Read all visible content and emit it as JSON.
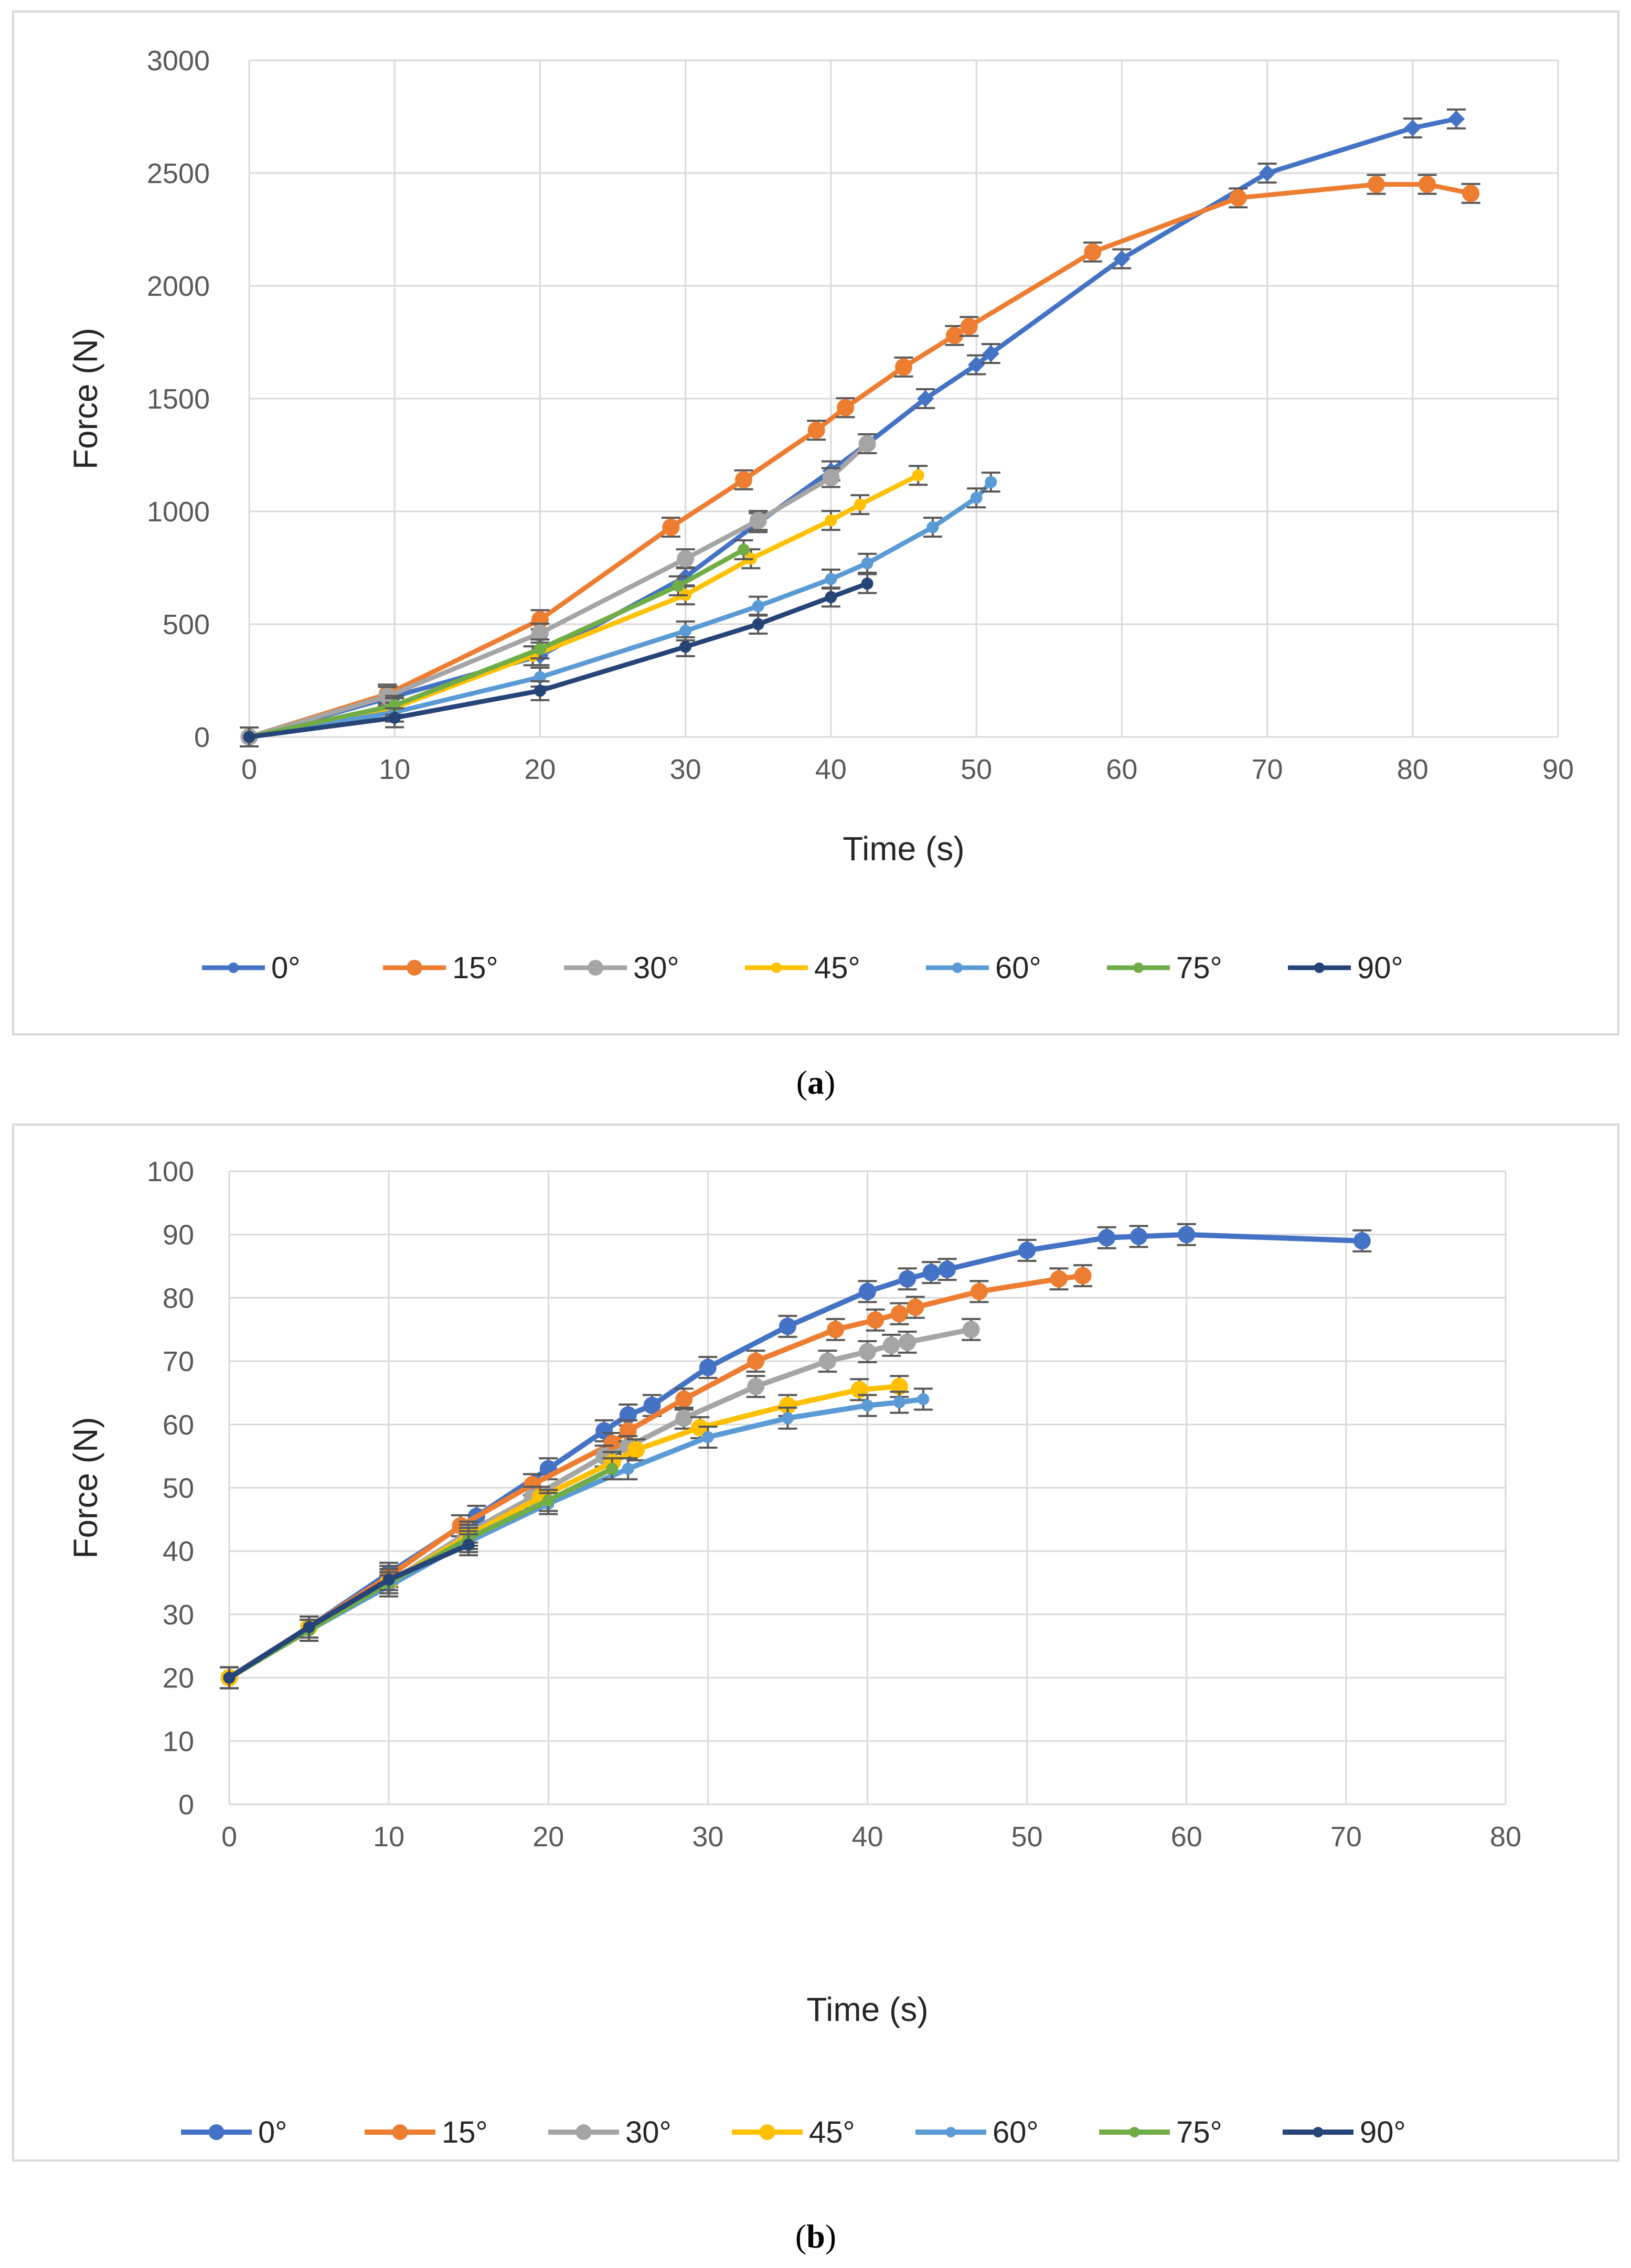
{
  "chart_data": [
    {
      "type": "line",
      "caption": "(a)",
      "caption_letter": "a",
      "title": "",
      "xlabel": "Time (s)",
      "ylabel": "Force (N)",
      "xlim": [
        0,
        90
      ],
      "ylim": [
        0,
        3000
      ],
      "xticks": [
        0,
        10,
        20,
        30,
        40,
        50,
        60,
        70,
        80,
        90
      ],
      "yticks": [
        0,
        500,
        1000,
        1500,
        2000,
        2500,
        3000
      ],
      "grid": true,
      "legend_position": "bottom",
      "series": [
        {
          "name": "0°",
          "color": "#4472C4",
          "marker": "diamond",
          "x": [
            0,
            10,
            20,
            30,
            35,
            40,
            42.5,
            46.5,
            50,
            51,
            60,
            70,
            80,
            83
          ],
          "y": [
            0,
            180,
            360,
            710,
            950,
            1180,
            1300,
            1500,
            1650,
            1700,
            2120,
            2500,
            2700,
            2740
          ]
        },
        {
          "name": "15°",
          "color": "#ED7D31",
          "marker": "circle",
          "x": [
            0,
            9.5,
            20,
            29,
            34,
            39,
            41,
            45,
            48.5,
            49.5,
            58,
            68,
            77.5,
            81,
            84
          ],
          "y": [
            0,
            190,
            520,
            930,
            1140,
            1360,
            1460,
            1640,
            1780,
            1820,
            2150,
            2390,
            2450,
            2450,
            2410
          ]
        },
        {
          "name": "30°",
          "color": "#A5A5A5",
          "marker": "circle",
          "x": [
            0,
            9.5,
            20,
            30,
            35,
            40,
            42.5
          ],
          "y": [
            0,
            180,
            460,
            790,
            960,
            1150,
            1300
          ]
        },
        {
          "name": "45°",
          "color": "#FFC000",
          "marker": "dot",
          "x": [
            0,
            10,
            19.5,
            30,
            34.5,
            40,
            42,
            46
          ],
          "y": [
            0,
            130,
            360,
            630,
            790,
            960,
            1030,
            1160
          ]
        },
        {
          "name": "60°",
          "color": "#5B9BD5",
          "marker": "dot",
          "x": [
            0,
            10,
            20,
            30,
            35,
            40,
            42.5,
            47,
            50,
            51
          ],
          "y": [
            0,
            110,
            265,
            470,
            580,
            700,
            770,
            930,
            1060,
            1130
          ]
        },
        {
          "name": "75°",
          "color": "#70AD47",
          "marker": "dot",
          "x": [
            0,
            10,
            20,
            29.5,
            34
          ],
          "y": [
            0,
            140,
            390,
            670,
            830
          ]
        },
        {
          "name": "90°",
          "color": "#264478",
          "marker": "dot",
          "x": [
            0,
            10,
            20,
            30,
            35,
            40,
            42.5
          ],
          "y": [
            0,
            85,
            205,
            400,
            500,
            620,
            680
          ]
        }
      ]
    },
    {
      "type": "line",
      "caption": "(b)",
      "caption_letter": "b",
      "title": "",
      "xlabel": "Time (s)",
      "ylabel": "Force (N)",
      "xlim": [
        0,
        80
      ],
      "ylim": [
        0,
        100
      ],
      "xticks": [
        0,
        10,
        20,
        30,
        40,
        50,
        60,
        70,
        80
      ],
      "yticks": [
        0,
        10,
        20,
        30,
        40,
        50,
        60,
        70,
        80,
        90,
        100
      ],
      "grid": true,
      "legend_position": "bottom",
      "series": [
        {
          "name": "0°",
          "color": "#4472C4",
          "marker": "circle",
          "x": [
            0,
            5,
            10,
            15.5,
            20,
            23.5,
            25,
            26.5,
            30,
            35,
            40,
            42.5,
            44,
            45,
            50,
            55,
            57,
            60,
            71
          ],
          "y": [
            20,
            28,
            36.5,
            45.5,
            53,
            59,
            61.5,
            63,
            69,
            75.5,
            81,
            83,
            84,
            84.5,
            87.5,
            89.5,
            89.7,
            90,
            89
          ]
        },
        {
          "name": "15°",
          "color": "#ED7D31",
          "marker": "circle",
          "x": [
            0,
            5,
            10,
            14.5,
            19,
            24,
            25,
            28.5,
            33,
            38,
            40.5,
            42,
            43,
            47,
            52,
            53.5
          ],
          "y": [
            20,
            28,
            36,
            44,
            50.5,
            57,
            59,
            64,
            70,
            75,
            76.5,
            77.5,
            78.5,
            81,
            83,
            83.5
          ]
        },
        {
          "name": "30°",
          "color": "#A5A5A5",
          "marker": "circle",
          "x": [
            0,
            5,
            10,
            15,
            19,
            23.5,
            25,
            28.5,
            33,
            37.5,
            40,
            41.5,
            42.5,
            46.5
          ],
          "y": [
            20,
            28,
            35,
            43,
            48.5,
            55,
            56.5,
            61,
            66,
            70,
            71.5,
            72.5,
            73,
            75
          ]
        },
        {
          "name": "45°",
          "color": "#FFC000",
          "marker": "circle",
          "x": [
            0,
            5,
            10,
            15,
            19.5,
            24,
            25.5,
            29.5,
            35,
            39.5,
            42
          ],
          "y": [
            20,
            28,
            35,
            42.5,
            48.5,
            54,
            56,
            59.5,
            63,
            65.5,
            66
          ]
        },
        {
          "name": "60°",
          "color": "#5B9BD5",
          "marker": "dot",
          "x": [
            0,
            5,
            10,
            15,
            20,
            25,
            30,
            35,
            40,
            42,
            43.5
          ],
          "y": [
            20,
            27.5,
            34.5,
            41.5,
            47.5,
            53,
            58,
            61,
            63,
            63.5,
            64
          ]
        },
        {
          "name": "75°",
          "color": "#70AD47",
          "marker": "dot",
          "x": [
            0,
            5,
            10,
            15,
            20,
            24
          ],
          "y": [
            20,
            27.5,
            35,
            42,
            48,
            53
          ]
        },
        {
          "name": "90°",
          "color": "#264478",
          "marker": "dot",
          "x": [
            0,
            5,
            10,
            15
          ],
          "y": [
            20,
            28,
            35.5,
            41
          ]
        }
      ]
    }
  ]
}
